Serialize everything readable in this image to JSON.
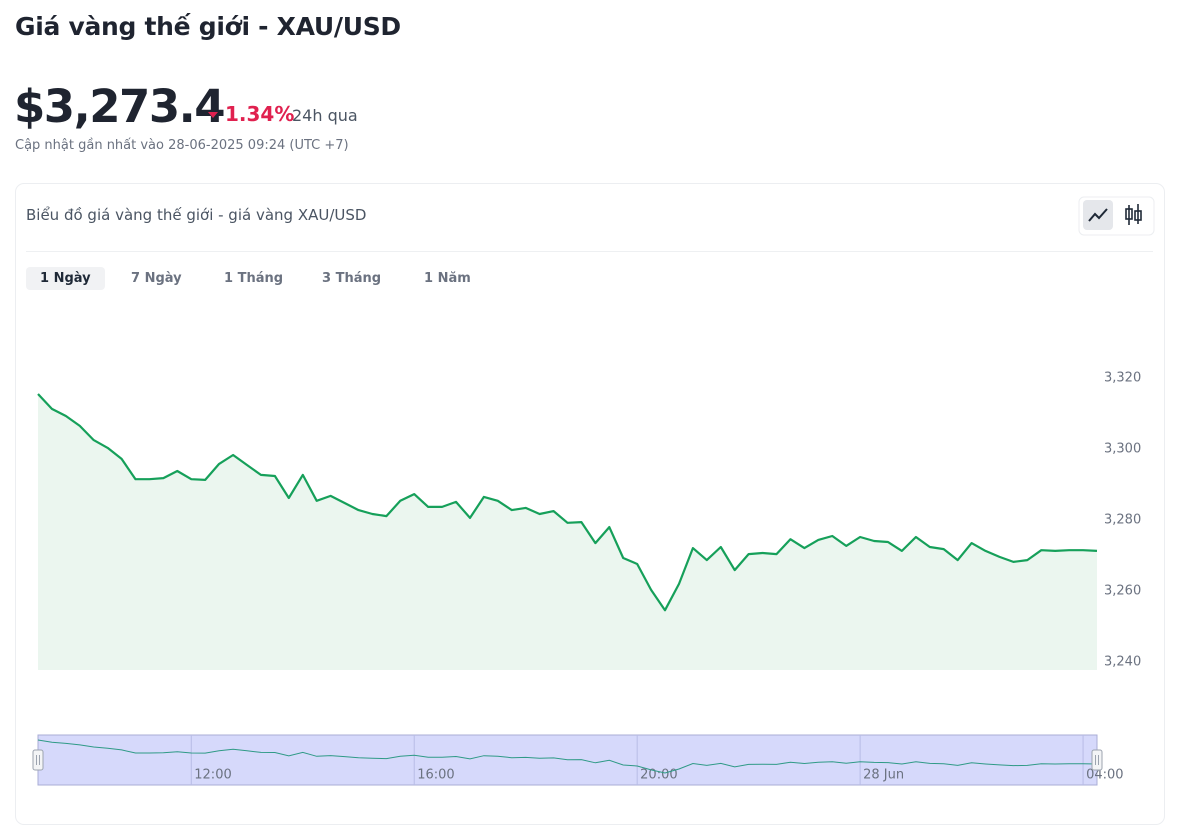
{
  "header": {
    "title": "Giá vàng thế giới - XAU/USD",
    "price": "$3,273.4",
    "change": "1.34%",
    "period": "24h qua",
    "updated": "Cập nhật gần nhất vào 28-06-2025 09:24 (UTC +7)"
  },
  "card": {
    "title": "Biểu đồ giá vàng thế giới - giá vàng XAU/USD",
    "tabs": [
      "1 Ngày",
      "7 Ngày",
      "1 Tháng",
      "3 Tháng",
      "1 Năm"
    ],
    "active_tab": 0
  },
  "chart_data": {
    "type": "area",
    "x": [
      9.25,
      9.5,
      9.75,
      10,
      10.25,
      10.5,
      10.75,
      11,
      11.25,
      11.5,
      11.75,
      12,
      12.25,
      12.5,
      12.75,
      13,
      13.25,
      13.5,
      13.75,
      14,
      14.25,
      14.5,
      14.75,
      15,
      15.25,
      15.5,
      15.75,
      16,
      16.25,
      16.5,
      16.75,
      17,
      17.25,
      17.5,
      17.75,
      18,
      18.25,
      18.5,
      18.75,
      19,
      19.25,
      19.5,
      19.75,
      20,
      20.25,
      20.5,
      20.75,
      21,
      21.25,
      21.5,
      21.75,
      22,
      22.25,
      22.5,
      22.75,
      23,
      23.25,
      23.5,
      23.75,
      24,
      24.25,
      24.5,
      24.75,
      25,
      25.25,
      25.5,
      25.75,
      26,
      26.25,
      26.5,
      26.75,
      27,
      27.25,
      27.5,
      27.75,
      28,
      28.25
    ],
    "values": [
      3315.5,
      3311.3,
      3309.3,
      3306.5,
      3302.5,
      3300.3,
      3297.2,
      3291.5,
      3291.5,
      3291.8,
      3293.8,
      3291.5,
      3291.3,
      3295.8,
      3298.3,
      3295.5,
      3292.7,
      3292.4,
      3286.2,
      3292.7,
      3285.4,
      3286.8,
      3284.8,
      3282.8,
      3281.7,
      3281.1,
      3285.4,
      3287.3,
      3283.7,
      3283.7,
      3285.1,
      3280.6,
      3286.5,
      3285.4,
      3282.8,
      3283.4,
      3281.7,
      3282.5,
      3279.2,
      3279.4,
      3273.5,
      3278.0,
      3269.3,
      3267.6,
      3260.3,
      3254.6,
      3262.0,
      3272.1,
      3268.7,
      3272.4,
      3265.9,
      3270.4,
      3270.7,
      3270.4,
      3274.6,
      3272.1,
      3274.4,
      3275.5,
      3272.7,
      3275.2,
      3274.1,
      3273.8,
      3271.3,
      3275.2,
      3272.4,
      3271.8,
      3268.7,
      3273.5,
      3271.3,
      3269.6,
      3268.2,
      3268.7,
      3271.5,
      3271.3,
      3271.5,
      3271.5,
      3271.3
    ],
    "color": "#16a05a",
    "area_color": "#ebf6ef",
    "xlim": [
      9.25,
      28.25
    ],
    "xticks": [
      {
        "value": 12,
        "label": "12:00"
      },
      {
        "value": 16,
        "label": "16:00"
      },
      {
        "value": 20,
        "label": "20:00"
      },
      {
        "value": 24,
        "label": "28 Jun"
      },
      {
        "value": 28,
        "label": "04:00"
      }
    ],
    "ylim": [
      3237.75,
      3330
    ],
    "yticks": [
      {
        "value": 3240,
        "label": "3,240"
      },
      {
        "value": 3260,
        "label": "3,260"
      },
      {
        "value": 3280,
        "label": "3,280"
      },
      {
        "value": 3300,
        "label": "3,300"
      },
      {
        "value": 3320,
        "label": "3,320"
      }
    ],
    "grid": false
  }
}
